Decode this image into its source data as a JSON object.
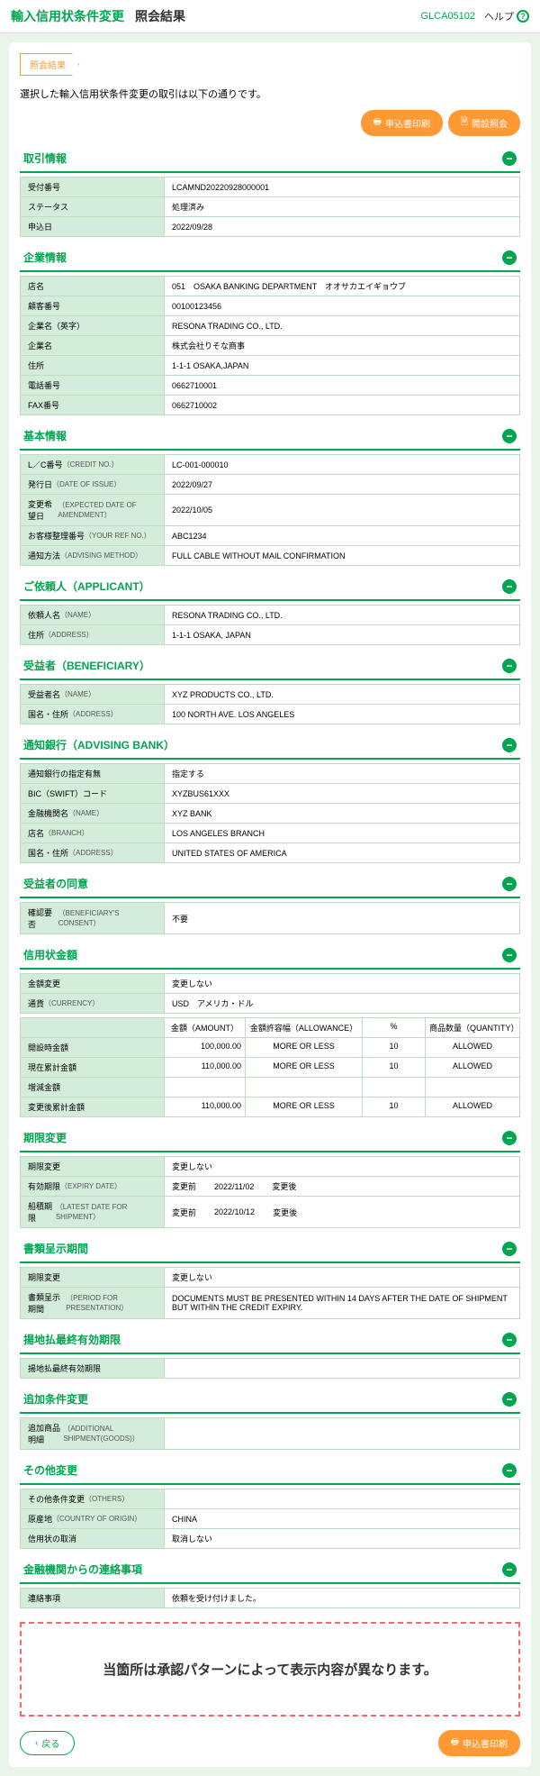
{
  "header": {
    "title_main": "輸入信用状条件変更",
    "title_sub": "照会結果",
    "code": "GLCA05102",
    "help": "ヘルプ"
  },
  "breadcrumb": "照会結果",
  "intro": "選択した輸入信用状条件変更の取引は以下の通りです。",
  "buttons": {
    "print": "申込書印刷",
    "opening": "開設照会",
    "back": "戻る"
  },
  "sections": {
    "transaction": {
      "title": "取引情報",
      "rows": [
        {
          "label": "受付番号",
          "value": "LCAMND20220928000001"
        },
        {
          "label": "ステータス",
          "value": "処理済み"
        },
        {
          "label": "申込日",
          "value": "2022/09/28"
        }
      ]
    },
    "company": {
      "title": "企業情報",
      "rows": [
        {
          "label": "店名",
          "value": "051　OSAKA BANKING DEPARTMENT　オオサカエイギョウブ"
        },
        {
          "label": "顧客番号",
          "value": "00100123456"
        },
        {
          "label": "企業名（英字）",
          "value": "RESONA TRADING CO., LTD."
        },
        {
          "label": "企業名",
          "value": "株式会社りそな商事"
        },
        {
          "label": "住所",
          "value": "1-1-1 OSAKA,JAPAN"
        },
        {
          "label": "電話番号",
          "value": "0662710001"
        },
        {
          "label": "FAX番号",
          "value": "0662710002"
        }
      ]
    },
    "basic": {
      "title": "基本情報",
      "rows": [
        {
          "label": "L／C番号",
          "sub": "（CREDIT NO.）",
          "value": "LC-001-000010"
        },
        {
          "label": "発行日",
          "sub": "（DATE OF ISSUE）",
          "value": "2022/09/27"
        },
        {
          "label": "変更希望日",
          "sub": "（EXPECTED DATE OF AMENDMENT）",
          "value": "2022/10/05"
        },
        {
          "label": "お客様整理番号",
          "sub": "（YOUR REF NO.）",
          "value": "ABC1234"
        },
        {
          "label": "通知方法",
          "sub": "（ADVISING METHOD）",
          "value": "FULL CABLE WITHOUT MAIL CONFIRMATION"
        }
      ]
    },
    "applicant": {
      "title": "ご依頼人（APPLICANT）",
      "rows": [
        {
          "label": "依頼人名",
          "sub": "（NAME）",
          "value": "RESONA TRADING CO., LTD."
        },
        {
          "label": "住所",
          "sub": "（ADDRESS）",
          "value": "1-1-1 OSAKA, JAPAN"
        }
      ]
    },
    "beneficiary": {
      "title": "受益者（BENEFICIARY）",
      "rows": [
        {
          "label": "受益者名",
          "sub": "（NAME）",
          "value": "XYZ PRODUCTS CO., LTD."
        },
        {
          "label": "国名・住所",
          "sub": "（ADDRESS）",
          "value": "100 NORTH AVE. LOS ANGELES"
        }
      ]
    },
    "advising": {
      "title": "通知銀行（ADVISING BANK）",
      "rows": [
        {
          "label": "通知銀行の指定有無",
          "value": "指定する"
        },
        {
          "label": "BIC（SWIFT）コード",
          "value": "XYZBUS61XXX"
        },
        {
          "label": "金融機関名",
          "sub": "（NAME）",
          "value": "XYZ BANK"
        },
        {
          "label": "店名",
          "sub": "（BRANCH）",
          "value": "LOS ANGELES BRANCH"
        },
        {
          "label": "国名・住所",
          "sub": "（ADDRESS）",
          "value": "UNITED STATES OF AMERICA"
        }
      ]
    },
    "consent": {
      "title": "受益者の同意",
      "rows": [
        {
          "label": "確認要否",
          "sub": "（BENEFICIARY'S CONSENT）",
          "value": "不要"
        }
      ]
    },
    "amount": {
      "title": "信用状金額",
      "top_rows": [
        {
          "label": "金額変更",
          "value": "変更しない"
        },
        {
          "label": "通貨",
          "sub": "（CURRENCY）",
          "value": "USD　アメリカ・ドル"
        }
      ],
      "headers": {
        "amt": "金額（AMOUNT）",
        "allow": "金額許容幅（ALLOWANCE）",
        "pct": "%",
        "qty": "商品数量（QUANTITY）"
      },
      "data_rows": [
        {
          "label": "開設時金額",
          "amt": "100,000.00",
          "allow": "MORE OR LESS",
          "pct": "10",
          "qty": "ALLOWED"
        },
        {
          "label": "現在累計金額",
          "amt": "110,000.00",
          "allow": "MORE OR LESS",
          "pct": "10",
          "qty": "ALLOWED"
        },
        {
          "label": "増減金額",
          "amt": "",
          "allow": "",
          "pct": "",
          "qty": ""
        },
        {
          "label": "変更後累計金額",
          "amt": "110,000.00",
          "allow": "MORE OR LESS",
          "pct": "10",
          "qty": "ALLOWED"
        }
      ]
    },
    "expiry": {
      "title": "期限変更",
      "rows": [
        {
          "label": "期限変更",
          "value": "変更しない"
        },
        {
          "label": "有効期限",
          "sub": "（EXPIRY DATE）",
          "before": "変更前",
          "date": "2022/11/02",
          "after": "変更後"
        },
        {
          "label": "船積期限",
          "sub": "（LATEST DATE FOR SHIPMENT）",
          "before": "変更前",
          "date": "2022/10/12",
          "after": "変更後"
        }
      ]
    },
    "presentation": {
      "title": "書類呈示期間",
      "rows": [
        {
          "label": "期限変更",
          "value": "変更しない"
        },
        {
          "label": "書類呈示期間",
          "sub": "（PERIOD FOR PRESENTATION）",
          "value": "DOCUMENTS MUST BE PRESENTED WITHIN 14 DAYS AFTER THE DATE OF SHIPMENT BUT WITHIN THE CREDIT EXPIRY."
        }
      ]
    },
    "local": {
      "title": "揚地払最終有効期限",
      "rows": [
        {
          "label": "揚地払最終有効期限",
          "value": ""
        }
      ]
    },
    "additional": {
      "title": "追加条件変更",
      "rows": [
        {
          "label": "追加商品明細",
          "sub": "（ADDITIONAL SHIPMENT(GOODS)）",
          "value": ""
        }
      ]
    },
    "other": {
      "title": "その他変更",
      "rows": [
        {
          "label": "その他条件変更",
          "sub": "（OTHERS）",
          "value": ""
        },
        {
          "label": "原産地",
          "sub": "（COUNTRY OF ORIGIN）",
          "value": "CHINA"
        },
        {
          "label": "信用状の取消",
          "value": "取消しない"
        }
      ]
    },
    "bank": {
      "title": "金融機関からの連絡事項",
      "rows": [
        {
          "label": "連絡事項",
          "value": "依頼を受け付けました。"
        }
      ]
    }
  },
  "notice": "当箇所は承認パターンによって表示内容が異なります。"
}
